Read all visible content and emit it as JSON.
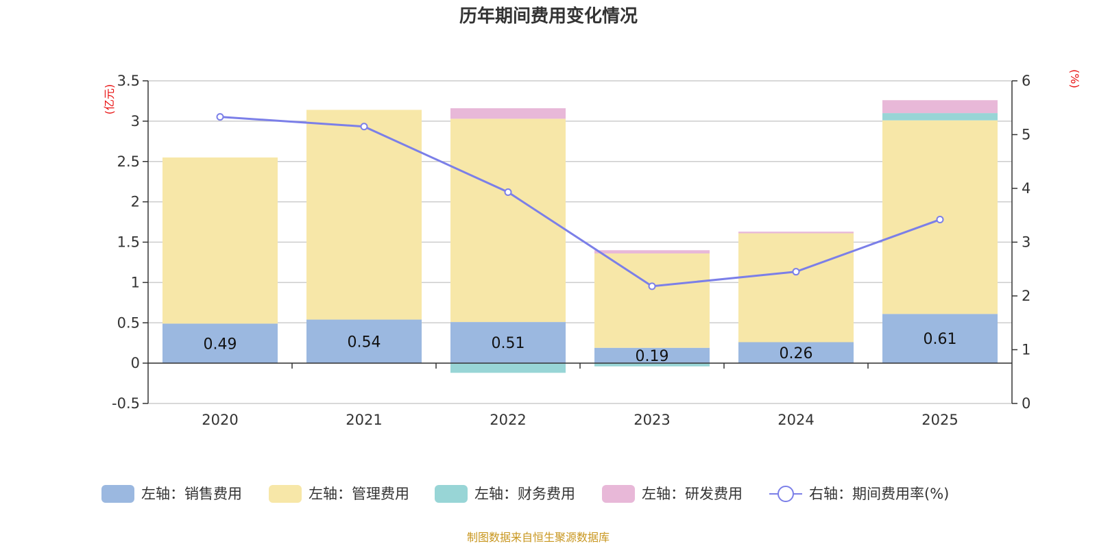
{
  "chart_data": {
    "type": "bar",
    "title": "历年期间费用变化情况",
    "categories": [
      "2020",
      "2021",
      "2022",
      "2023",
      "2024",
      "2025"
    ],
    "left_axis": {
      "unit_label": "(亿元)",
      "ylim": [
        -0.5,
        3.5
      ],
      "ticks": [
        -0.5,
        0,
        0.5,
        1,
        1.5,
        2,
        2.5,
        3,
        3.5
      ],
      "tick_labels": [
        "-0.5",
        "0",
        "0.5",
        "1",
        "1.5",
        "2",
        "2.5",
        "3",
        "3.5"
      ]
    },
    "right_axis": {
      "unit_label": "(%)",
      "ylim": [
        0,
        6
      ],
      "ticks": [
        0,
        1,
        2,
        3,
        4,
        5,
        6
      ],
      "tick_labels": [
        "0",
        "1",
        "2",
        "3",
        "4",
        "5",
        "6"
      ]
    },
    "series": [
      {
        "name": "左轴：销售费用",
        "type": "bar",
        "axis": "left",
        "color": "#9bb8e0",
        "values": [
          0.49,
          0.54,
          0.51,
          0.19,
          0.26,
          0.61
        ],
        "labels": [
          "0.49",
          "0.54",
          "0.51",
          "0.19",
          "0.26",
          "0.61"
        ]
      },
      {
        "name": "左轴：管理费用",
        "type": "bar",
        "axis": "left",
        "color": "#f7e7a8",
        "values": [
          2.06,
          2.6,
          2.52,
          1.17,
          1.35,
          2.4
        ]
      },
      {
        "name": "左轴：财务费用",
        "type": "bar",
        "axis": "left",
        "color": "#98d5d6",
        "values": [
          0.0,
          0.0,
          -0.12,
          -0.04,
          0.0,
          0.09
        ]
      },
      {
        "name": "左轴：研发费用",
        "type": "bar",
        "axis": "left",
        "color": "#e8b8d8",
        "values": [
          0.0,
          0.0,
          0.13,
          0.04,
          0.02,
          0.16
        ]
      },
      {
        "name": "右轴：期间费用率(%)",
        "type": "line",
        "axis": "right",
        "color": "#7b7fe8",
        "values": [
          5.33,
          5.15,
          3.93,
          2.18,
          2.45,
          3.42
        ]
      }
    ],
    "legend_position": "bottom",
    "grid": true
  },
  "source_text": "制图数据来自恒生聚源数据库"
}
